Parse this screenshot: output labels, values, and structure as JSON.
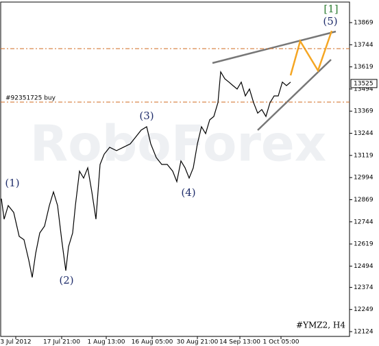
{
  "chart_data": {
    "type": "line",
    "label": "#YMZ2, H4",
    "watermark": "RoboForex",
    "xlim": [
      1,
      510
    ],
    "ylim": [
      12097,
      13985
    ],
    "xticks": [
      {
        "value": 23,
        "label": "3 Jul 2012"
      },
      {
        "value": 90,
        "label": "17 Jul 21:00"
      },
      {
        "value": 155,
        "label": "1 Aug 13:00"
      },
      {
        "value": 222,
        "label": "16 Aug 05:00"
      },
      {
        "value": 288,
        "label": "30 Aug 21:00"
      },
      {
        "value": 350,
        "label": "14 Sep 13:00"
      },
      {
        "value": 410,
        "label": "1 Oct 05:00"
      }
    ],
    "yticks": [
      13869,
      13744,
      13619,
      13494,
      13369,
      13244,
      13119,
      12994,
      12869,
      12744,
      12619,
      12494,
      12374,
      12249,
      12124
    ],
    "current_price": 13525,
    "levels": [
      {
        "value": 13722,
        "color": "#d2691e"
      },
      {
        "value": 13420,
        "color": "#d2691e",
        "label": "#92351725 buy"
      }
    ],
    "series": [
      {
        "color": "#000000",
        "x": [
          2,
          6,
          12,
          20,
          28,
          35,
          42,
          47,
          52,
          58,
          65,
          72,
          78,
          84,
          90,
          96,
          100,
          106,
          110,
          116,
          122,
          128,
          134,
          140,
          146,
          152,
          160,
          170,
          180,
          190,
          198,
          206,
          214,
          220,
          228,
          236,
          244,
          252,
          258,
          264,
          270,
          276,
          282,
          288,
          294,
          300,
          306,
          312,
          318,
          322,
          328,
          334,
          340,
          346,
          352,
          358,
          364,
          370,
          376,
          382,
          388,
          394,
          400,
          406,
          412,
          418,
          424
        ],
        "values": [
          12875,
          12759,
          12836,
          12797,
          12662,
          12643,
          12527,
          12430,
          12565,
          12681,
          12720,
          12836,
          12913,
          12836,
          12643,
          12468,
          12604,
          12681,
          12836,
          13030,
          12991,
          13049,
          12913,
          12759,
          13068,
          13126,
          13165,
          13146,
          13165,
          13184,
          13223,
          13262,
          13281,
          13184,
          13107,
          13068,
          13068,
          13030,
          12971,
          13088,
          13049,
          12991,
          13049,
          13184,
          13281,
          13242,
          13320,
          13339,
          13417,
          13591,
          13552,
          13533,
          13513,
          13494,
          13533,
          13455,
          13494,
          13417,
          13358,
          13378,
          13339,
          13417,
          13455,
          13455,
          13533,
          13513,
          13533
        ]
      }
    ],
    "annotations": [
      {
        "text": "(1)",
        "x": 18,
        "y": 12960,
        "color": "#1f2d6b"
      },
      {
        "text": "(2)",
        "x": 97,
        "y": 12410,
        "color": "#1f2d6b"
      },
      {
        "text": "(3)",
        "x": 214,
        "y": 13339,
        "color": "#1f2d6b"
      },
      {
        "text": "(4)",
        "x": 275,
        "y": 12906,
        "color": "#1f2d6b"
      },
      {
        "text": "(5)",
        "x": 482,
        "y": 13873,
        "color": "#1f2d6b"
      },
      {
        "text": "[1]",
        "x": 483,
        "y": 13943,
        "color": "#2e7d32"
      }
    ]
  }
}
